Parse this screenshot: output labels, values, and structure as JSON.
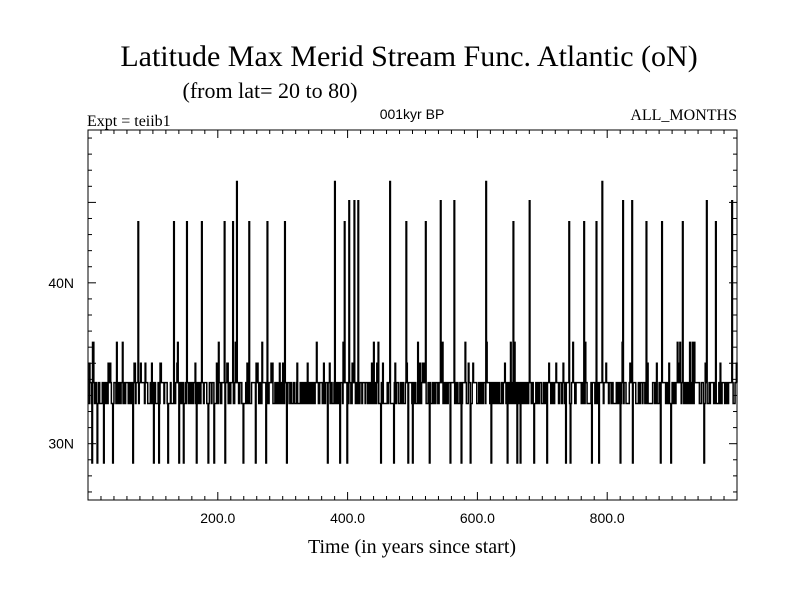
{
  "chart_data": {
    "type": "line",
    "title": "Latitude Max Merid Stream Func. Atlantic (oN)",
    "subtitle": "(from lat= 20 to 80)",
    "experiment_label": "Expt = teiib1",
    "period_label": "001kyr BP",
    "months_label": "ALL_MONTHS",
    "xlabel": "Time (in years since start)",
    "ylabel": "",
    "xlim": [
      0,
      1000
    ],
    "ylim": [
      26.5,
      49.5
    ],
    "x_ticks": [
      200,
      400,
      600,
      800
    ],
    "x_tick_labels": [
      "200.0",
      "400.0",
      "600.0",
      "800.0"
    ],
    "y_ticks": [
      30,
      40
    ],
    "y_tick_labels": [
      "30N",
      "40N"
    ],
    "grid": false,
    "series": [
      {
        "baseline_high": 33.8,
        "baseline_low": 32.5,
        "dip_level": 28.8,
        "spikes": [
          {
            "x": 77,
            "y": 43.8
          },
          {
            "x": 132,
            "y": 43.8
          },
          {
            "x": 152,
            "y": 43.8
          },
          {
            "x": 175,
            "y": 43.8
          },
          {
            "x": 210,
            "y": 43.8
          },
          {
            "x": 223,
            "y": 43.8
          },
          {
            "x": 229,
            "y": 46.3
          },
          {
            "x": 248,
            "y": 43.8
          },
          {
            "x": 276,
            "y": 43.8
          },
          {
            "x": 303,
            "y": 43.8
          },
          {
            "x": 380,
            "y": 46.3
          },
          {
            "x": 395,
            "y": 43.8
          },
          {
            "x": 402,
            "y": 45.1
          },
          {
            "x": 410,
            "y": 45.1
          },
          {
            "x": 416,
            "y": 45.1
          },
          {
            "x": 465,
            "y": 46.3
          },
          {
            "x": 490,
            "y": 43.8
          },
          {
            "x": 520,
            "y": 43.8
          },
          {
            "x": 543,
            "y": 45.1
          },
          {
            "x": 564,
            "y": 45.1
          },
          {
            "x": 613,
            "y": 46.3
          },
          {
            "x": 655,
            "y": 43.8
          },
          {
            "x": 680,
            "y": 45.1
          },
          {
            "x": 741,
            "y": 43.8
          },
          {
            "x": 764,
            "y": 43.8
          },
          {
            "x": 783,
            "y": 43.8
          },
          {
            "x": 792,
            "y": 46.3
          },
          {
            "x": 824,
            "y": 45.1
          },
          {
            "x": 838,
            "y": 45.1
          },
          {
            "x": 860,
            "y": 43.8
          },
          {
            "x": 884,
            "y": 43.8
          },
          {
            "x": 916,
            "y": 43.8
          },
          {
            "x": 953,
            "y": 45.1
          },
          {
            "x": 967,
            "y": 43.8
          },
          {
            "x": 992,
            "y": 45.1
          }
        ],
        "dips": [
          6,
          14,
          24,
          38,
          69,
          101,
          109,
          123,
          140,
          147,
          167,
          185,
          194,
          211,
          239,
          258,
          274,
          306,
          369,
          388,
          399,
          451,
          471,
          493,
          500,
          526,
          558,
          575,
          589,
          613,
          621,
          646,
          661,
          666,
          687,
          707,
          736,
          743,
          776,
          787,
          820,
          839,
          882,
          898,
          949
        ]
      }
    ]
  }
}
